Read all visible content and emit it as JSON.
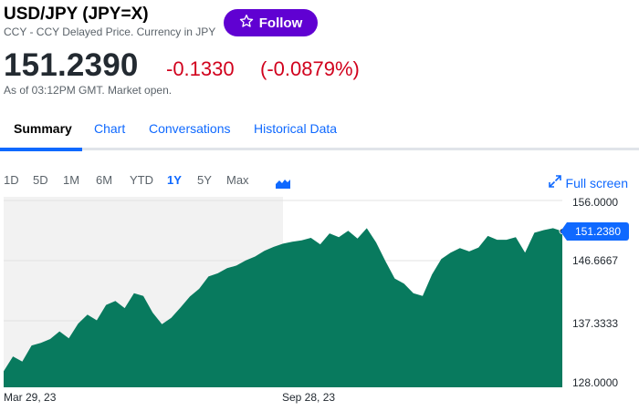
{
  "header": {
    "title": "USD/JPY (JPY=X)",
    "subtitle": "CCY - CCY Delayed Price. Currency in JPY",
    "follow_label": "Follow"
  },
  "quote": {
    "price": "151.2390",
    "change": "-0.1330",
    "change_pct": "(-0.0879%)",
    "as_of": "As of 03:12PM GMT. Market open."
  },
  "tabs": [
    {
      "label": "Summary"
    },
    {
      "label": "Chart"
    },
    {
      "label": "Conversations"
    },
    {
      "label": "Historical Data"
    }
  ],
  "ranges": [
    "1D",
    "5D",
    "1M",
    "6M",
    "YTD",
    "1Y",
    "5Y",
    "Max"
  ],
  "active_range": "1Y",
  "fullscreen_label": "Full screen",
  "colors": {
    "area": "#087a5e",
    "accent": "#0f69ff",
    "negative": "#d1021d",
    "follow": "#6001d2"
  },
  "chart_data": {
    "type": "area",
    "x_tick_labels": [
      "Mar 29, 23",
      "Sep 28, 23"
    ],
    "y_ticks": [
      "156.0000",
      "146.6667",
      "137.3333",
      "128.0000"
    ],
    "ylim": [
      128.0,
      156.0
    ],
    "current_value_label": "151.2380",
    "current_value": 151.238,
    "x_index_range": [
      0,
      60
    ],
    "x_tick_indices": [
      0,
      30
    ],
    "values": [
      129.5,
      131.8,
      131.0,
      133.5,
      133.9,
      134.5,
      135.7,
      134.6,
      136.9,
      138.3,
      137.4,
      139.8,
      140.4,
      139.3,
      141.6,
      141.2,
      138.6,
      136.8,
      137.8,
      139.4,
      141.1,
      142.3,
      144.2,
      144.7,
      145.5,
      145.9,
      146.7,
      147.3,
      148.2,
      148.8,
      149.3,
      149.6,
      149.8,
      150.2,
      149.2,
      150.9,
      150.3,
      151.3,
      150.1,
      151.7,
      149.5,
      146.6,
      143.9,
      143.1,
      141.6,
      141.2,
      144.5,
      146.9,
      147.9,
      148.6,
      148.1,
      148.7,
      150.5,
      149.9,
      149.9,
      150.3,
      147.9,
      151.0,
      151.4,
      151.7,
      151.24
    ]
  }
}
